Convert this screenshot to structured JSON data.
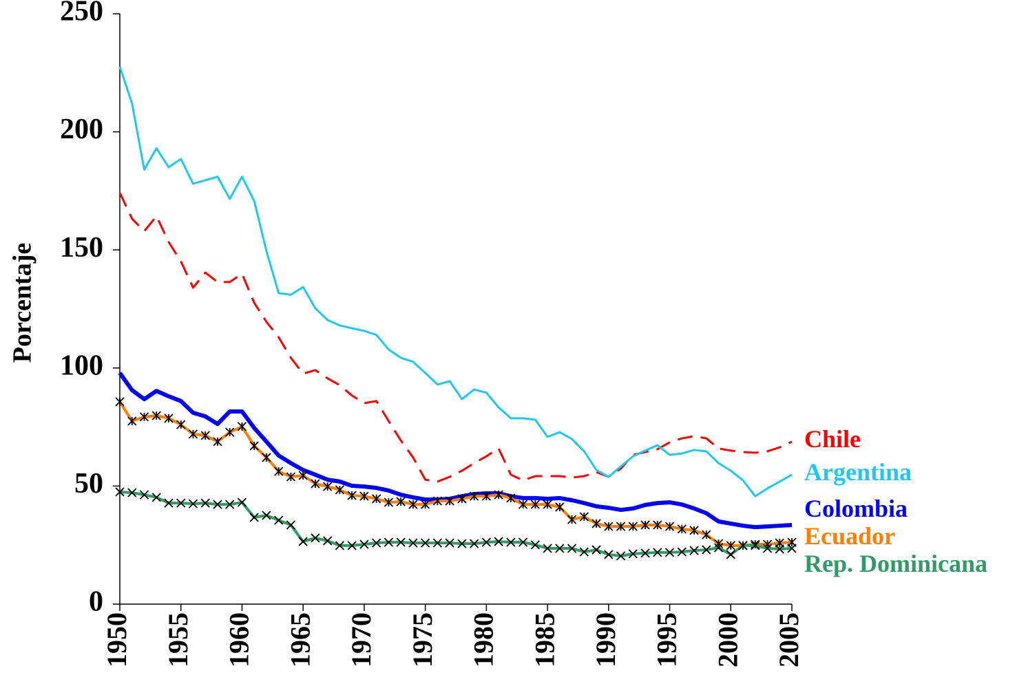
{
  "chart_data": {
    "type": "line",
    "ylabel": "Porcentaje",
    "x": [
      1950,
      1951,
      1952,
      1953,
      1954,
      1955,
      1956,
      1957,
      1958,
      1959,
      1960,
      1961,
      1962,
      1963,
      1964,
      1965,
      1966,
      1967,
      1968,
      1969,
      1970,
      1971,
      1972,
      1973,
      1974,
      1975,
      1976,
      1977,
      1978,
      1979,
      1980,
      1981,
      1982,
      1983,
      1984,
      1985,
      1986,
      1987,
      1988,
      1989,
      1990,
      1991,
      1992,
      1993,
      1994,
      1995,
      1996,
      1997,
      1998,
      1999,
      2000,
      2001,
      2002,
      2003,
      2004,
      2005
    ],
    "xlim": [
      1950,
      2005
    ],
    "xticks": [
      1950,
      1955,
      1960,
      1965,
      1970,
      1975,
      1980,
      1985,
      1990,
      1995,
      2000,
      2005
    ],
    "ylim": [
      0,
      250
    ],
    "yticks": [
      0,
      50,
      100,
      150,
      200,
      250
    ],
    "series": [
      {
        "name": "Chile",
        "color": "#ff0000",
        "dash": true,
        "line_width": 3,
        "values": [
          174.2,
          163.2,
          157.9,
          164.3,
          153.3,
          145.1,
          134,
          140.4,
          136.4,
          136.4,
          139.9,
          127.6,
          119.5,
          113,
          104.3,
          97.6,
          99.1,
          95.6,
          92.7,
          88.3,
          85.1,
          86,
          77.5,
          69.3,
          62.1,
          52.7,
          51.9,
          53.9,
          56.5,
          59.7,
          62.6,
          65.9,
          54.8,
          52.4,
          54.2,
          54.2,
          54.2,
          53.6,
          54.2,
          55.9,
          53.9,
          57.4,
          63.2,
          64.4,
          65.6,
          68.5,
          70.2,
          71.1,
          70.2,
          65.9,
          65,
          64.4,
          64.1,
          64.7,
          66.4,
          68.8
        ]
      },
      {
        "name": "Argentina",
        "color": "#1ec8f0",
        "line_width": 3,
        "values": [
          227.6,
          212,
          184,
          193,
          185,
          188.5,
          178,
          179.5,
          181,
          171.6,
          181,
          170.7,
          149.5,
          131.7,
          131,
          134.3,
          125.3,
          120.3,
          118,
          116.8,
          115.7,
          114,
          107.8,
          104.3,
          102.6,
          97.9,
          93,
          94.4,
          86.8,
          90.9,
          89.5,
          83.3,
          78.7,
          78.7,
          78.1,
          70.8,
          72.8,
          69.9,
          64.7,
          56.8,
          53.9,
          58.3,
          62.6,
          65,
          67.3,
          63.2,
          63.8,
          65.3,
          64.7,
          59.7,
          56.5,
          52.4,
          45.7,
          49,
          51.9,
          54.8
        ]
      },
      {
        "name": "Colombia",
        "color": "#0000ff",
        "line_width": 6,
        "values": [
          97.9,
          90.6,
          86.8,
          90.3,
          88,
          86,
          81,
          79.5,
          76.3,
          81.6,
          81.6,
          74.6,
          68.8,
          62.9,
          59.7,
          56.8,
          54.8,
          52.7,
          51.9,
          50.1,
          49.8,
          49.2,
          48.1,
          46.3,
          45.2,
          44.3,
          44.3,
          44.6,
          45.7,
          46.6,
          46.9,
          46.9,
          45.7,
          44.9,
          44.9,
          44.6,
          44.9,
          44,
          42.8,
          41.4,
          40.8,
          39.9,
          40.5,
          42,
          42.8,
          43.1,
          42.2,
          40.5,
          38.5,
          35,
          34.1,
          33.2,
          32.6,
          32.9,
          33.2,
          33.5
        ]
      },
      {
        "name": "Ecuador",
        "color": "#ff8000",
        "line_width": 4,
        "marker": "star",
        "values": [
          85.7,
          77.5,
          79.3,
          79.8,
          78.7,
          76,
          72,
          71.4,
          68.8,
          72.8,
          75.2,
          67,
          62.1,
          56.2,
          53.9,
          54.5,
          51,
          49.8,
          48.4,
          46,
          45.7,
          44.6,
          43.1,
          43.4,
          42.2,
          42.2,
          43.7,
          43.7,
          44.6,
          45.7,
          45.7,
          46.3,
          44.9,
          42.2,
          42.2,
          42.2,
          41.1,
          35.8,
          37,
          34.1,
          32.9,
          32.9,
          32.9,
          33.5,
          33.5,
          32.9,
          31.8,
          31.2,
          29.4,
          25.6,
          24.8,
          24.8,
          25.3,
          25.3,
          25.9,
          26.2
        ]
      },
      {
        "name": "Rep. Dominicana",
        "color": "#339966",
        "line_width": 4,
        "marker": "x",
        "values": [
          47.5,
          47.2,
          46.3,
          45.2,
          42.8,
          42.8,
          42.5,
          42.8,
          42.2,
          42.2,
          43.1,
          36.7,
          37.6,
          35.5,
          33.5,
          26.5,
          28,
          26.8,
          24.8,
          24.8,
          25.3,
          25.9,
          26.2,
          26.2,
          25.9,
          25.9,
          25.9,
          25.9,
          25.6,
          25.6,
          26.2,
          26.5,
          26.2,
          26.2,
          25.1,
          23.6,
          23.6,
          23.6,
          22.1,
          23,
          21,
          20.4,
          21.3,
          21.6,
          21.9,
          21.9,
          22.1,
          22.7,
          23,
          23.9,
          21,
          24.8,
          24.8,
          23.6,
          23.3,
          23.6
        ]
      }
    ]
  }
}
